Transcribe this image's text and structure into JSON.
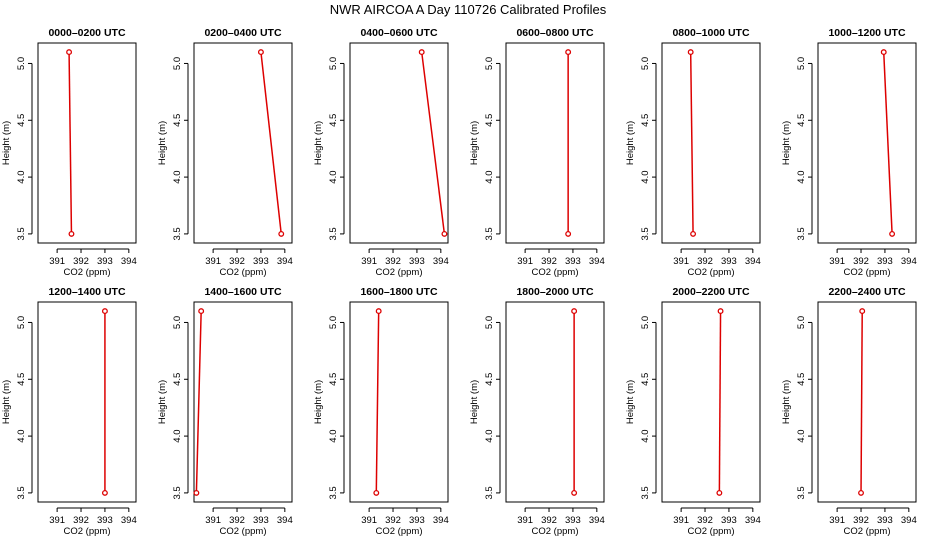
{
  "figure_title": "NWR AIRCOA A  Day 110726  Calibrated Profiles",
  "colors": {
    "series": "#dd0000",
    "axis": "#000000",
    "background": "#ffffff"
  },
  "chart_data": [
    {
      "type": "line",
      "title": "0000–0200 UTC",
      "xlabel": "CO2 (ppm)",
      "ylabel": "Height (m)",
      "x": [
        391.5,
        391.6
      ],
      "y": [
        5.1,
        3.5
      ],
      "xlim": [
        390.2,
        394.3
      ],
      "ylim": [
        3.42,
        5.18
      ],
      "xticks": [
        391,
        392,
        393,
        394
      ],
      "yticks": [
        3.5,
        4.0,
        4.5,
        5.0
      ],
      "xtick_labels": [
        "391",
        "392",
        "393",
        "394"
      ],
      "ytick_labels": [
        "3.5",
        "4.0",
        "4.5",
        "5.0"
      ],
      "grid": false,
      "legend": false
    },
    {
      "type": "line",
      "title": "0200–0400 UTC",
      "xlabel": "CO2 (ppm)",
      "ylabel": "Height (m)",
      "x": [
        393.0,
        393.85
      ],
      "y": [
        5.1,
        3.5
      ],
      "xlim": [
        390.2,
        394.3
      ],
      "ylim": [
        3.42,
        5.18
      ],
      "xticks": [
        391,
        392,
        393,
        394
      ],
      "yticks": [
        3.5,
        4.0,
        4.5,
        5.0
      ],
      "xtick_labels": [
        "391",
        "392",
        "393",
        "394"
      ],
      "ytick_labels": [
        "3.5",
        "4.0",
        "4.5",
        "5.0"
      ],
      "grid": false,
      "legend": false
    },
    {
      "type": "line",
      "title": "0400–0600 UTC",
      "xlabel": "CO2 (ppm)",
      "ylabel": "Height (m)",
      "x": [
        393.2,
        394.15
      ],
      "y": [
        5.1,
        3.5
      ],
      "xlim": [
        390.2,
        394.3
      ],
      "ylim": [
        3.42,
        5.18
      ],
      "xticks": [
        391,
        392,
        393,
        394
      ],
      "yticks": [
        3.5,
        4.0,
        4.5,
        5.0
      ],
      "xtick_labels": [
        "391",
        "392",
        "393",
        "394"
      ],
      "ytick_labels": [
        "3.5",
        "4.0",
        "4.5",
        "5.0"
      ],
      "grid": false,
      "legend": false
    },
    {
      "type": "line",
      "title": "0600–0800 UTC",
      "xlabel": "CO2 (ppm)",
      "ylabel": "Height (m)",
      "x": [
        392.8,
        392.8
      ],
      "y": [
        5.1,
        3.5
      ],
      "xlim": [
        390.2,
        394.3
      ],
      "ylim": [
        3.42,
        5.18
      ],
      "xticks": [
        391,
        392,
        393,
        394
      ],
      "yticks": [
        3.5,
        4.0,
        4.5,
        5.0
      ],
      "xtick_labels": [
        "391",
        "392",
        "393",
        "394"
      ],
      "ytick_labels": [
        "3.5",
        "4.0",
        "4.5",
        "5.0"
      ],
      "grid": false,
      "legend": false
    },
    {
      "type": "line",
      "title": "0800–1000 UTC",
      "xlabel": "CO2 (ppm)",
      "ylabel": "Height (m)",
      "x": [
        391.4,
        391.5
      ],
      "y": [
        5.1,
        3.5
      ],
      "xlim": [
        390.2,
        394.3
      ],
      "ylim": [
        3.42,
        5.18
      ],
      "xticks": [
        391,
        392,
        393,
        394
      ],
      "yticks": [
        3.5,
        4.0,
        4.5,
        5.0
      ],
      "xtick_labels": [
        "391",
        "392",
        "393",
        "394"
      ],
      "ytick_labels": [
        "3.5",
        "4.0",
        "4.5",
        "5.0"
      ],
      "grid": false,
      "legend": false
    },
    {
      "type": "line",
      "title": "1000–1200 UTC",
      "xlabel": "CO2 (ppm)",
      "ylabel": "Height (m)",
      "x": [
        392.95,
        393.3
      ],
      "y": [
        5.1,
        3.5
      ],
      "xlim": [
        390.2,
        394.3
      ],
      "ylim": [
        3.42,
        5.18
      ],
      "xticks": [
        391,
        392,
        393,
        394
      ],
      "yticks": [
        3.5,
        4.0,
        4.5,
        5.0
      ],
      "xtick_labels": [
        "391",
        "392",
        "393",
        "394"
      ],
      "ytick_labels": [
        "3.5",
        "4.0",
        "4.5",
        "5.0"
      ],
      "grid": false,
      "legend": false
    },
    {
      "type": "line",
      "title": "1200–1400 UTC",
      "xlabel": "CO2 (ppm)",
      "ylabel": "Height (m)",
      "x": [
        393.0,
        393.0
      ],
      "y": [
        5.1,
        3.5
      ],
      "xlim": [
        390.2,
        394.3
      ],
      "ylim": [
        3.42,
        5.18
      ],
      "xticks": [
        391,
        392,
        393,
        394
      ],
      "yticks": [
        3.5,
        4.0,
        4.5,
        5.0
      ],
      "xtick_labels": [
        "391",
        "392",
        "393",
        "394"
      ],
      "ytick_labels": [
        "3.5",
        "4.0",
        "4.5",
        "5.0"
      ],
      "grid": false,
      "legend": false
    },
    {
      "type": "line",
      "title": "1400–1600 UTC",
      "xlabel": "CO2 (ppm)",
      "ylabel": "Height (m)",
      "x": [
        390.5,
        390.3
      ],
      "y": [
        5.1,
        3.5
      ],
      "xlim": [
        390.2,
        394.3
      ],
      "ylim": [
        3.42,
        5.18
      ],
      "xticks": [
        391,
        392,
        393,
        394
      ],
      "yticks": [
        3.5,
        4.0,
        4.5,
        5.0
      ],
      "xtick_labels": [
        "391",
        "392",
        "393",
        "394"
      ],
      "ytick_labels": [
        "3.5",
        "4.0",
        "4.5",
        "5.0"
      ],
      "grid": false,
      "legend": false
    },
    {
      "type": "line",
      "title": "1600–1800 UTC",
      "xlabel": "CO2 (ppm)",
      "ylabel": "Height (m)",
      "x": [
        391.4,
        391.3
      ],
      "y": [
        5.1,
        3.5
      ],
      "xlim": [
        390.2,
        394.3
      ],
      "ylim": [
        3.42,
        5.18
      ],
      "xticks": [
        391,
        392,
        393,
        394
      ],
      "yticks": [
        3.5,
        4.0,
        4.5,
        5.0
      ],
      "xtick_labels": [
        "391",
        "392",
        "393",
        "394"
      ],
      "ytick_labels": [
        "3.5",
        "4.0",
        "4.5",
        "5.0"
      ],
      "grid": false,
      "legend": false
    },
    {
      "type": "line",
      "title": "1800–2000 UTC",
      "xlabel": "CO2 (ppm)",
      "ylabel": "Height (m)",
      "x": [
        393.05,
        393.05
      ],
      "y": [
        5.1,
        3.5
      ],
      "xlim": [
        390.2,
        394.3
      ],
      "ylim": [
        3.42,
        5.18
      ],
      "xticks": [
        391,
        392,
        393,
        394
      ],
      "yticks": [
        3.5,
        4.0,
        4.5,
        5.0
      ],
      "xtick_labels": [
        "391",
        "392",
        "393",
        "394"
      ],
      "ytick_labels": [
        "3.5",
        "4.0",
        "4.5",
        "5.0"
      ],
      "grid": false,
      "legend": false
    },
    {
      "type": "line",
      "title": "2000–2200 UTC",
      "xlabel": "CO2 (ppm)",
      "ylabel": "Height (m)",
      "x": [
        392.65,
        392.6
      ],
      "y": [
        5.1,
        3.5
      ],
      "xlim": [
        390.2,
        394.3
      ],
      "ylim": [
        3.42,
        5.18
      ],
      "xticks": [
        391,
        392,
        393,
        394
      ],
      "yticks": [
        3.5,
        4.0,
        4.5,
        5.0
      ],
      "xtick_labels": [
        "391",
        "392",
        "393",
        "394"
      ],
      "ytick_labels": [
        "3.5",
        "4.0",
        "4.5",
        "5.0"
      ],
      "grid": false,
      "legend": false
    },
    {
      "type": "line",
      "title": "2200–2400 UTC",
      "xlabel": "CO2 (ppm)",
      "ylabel": "Height (m)",
      "x": [
        392.05,
        392.0
      ],
      "y": [
        5.1,
        3.5
      ],
      "xlim": [
        390.2,
        394.3
      ],
      "ylim": [
        3.42,
        5.18
      ],
      "xticks": [
        391,
        392,
        393,
        394
      ],
      "yticks": [
        3.5,
        4.0,
        4.5,
        5.0
      ],
      "xtick_labels": [
        "391",
        "392",
        "393",
        "394"
      ],
      "ytick_labels": [
        "3.5",
        "4.0",
        "4.5",
        "5.0"
      ],
      "grid": false,
      "legend": false
    }
  ]
}
